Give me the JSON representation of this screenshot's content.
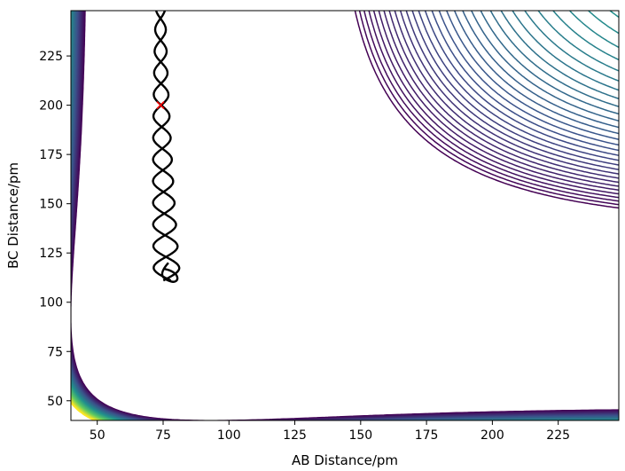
{
  "chart_data": {
    "type": "contour",
    "title": "",
    "xlabel": "AB Distance/pm",
    "ylabel": "BC Distance/pm",
    "xlim": [
      40,
      248
    ],
    "ylim": [
      40,
      248
    ],
    "xticks": [
      50,
      75,
      100,
      125,
      150,
      175,
      200,
      225
    ],
    "yticks": [
      50,
      75,
      100,
      125,
      150,
      175,
      200,
      225
    ],
    "colormap": [
      "#440154",
      "#3b528b",
      "#21918c",
      "#5ec962",
      "#fde725"
    ],
    "grid": false,
    "potential": {
      "description_of_shape": "LEPS-like surface with reactant valley along AB at ~74 pm and product valley along BC at ~74 pm",
      "n_levels": 60
    },
    "trajectory": {
      "color": "#000000",
      "start_marker": {
        "x": 74,
        "y": 200,
        "color": "#ff0000",
        "symbol": "x"
      },
      "x_center": 74,
      "y_start": 248,
      "y_turn": 111,
      "x_turn": 80
    }
  }
}
